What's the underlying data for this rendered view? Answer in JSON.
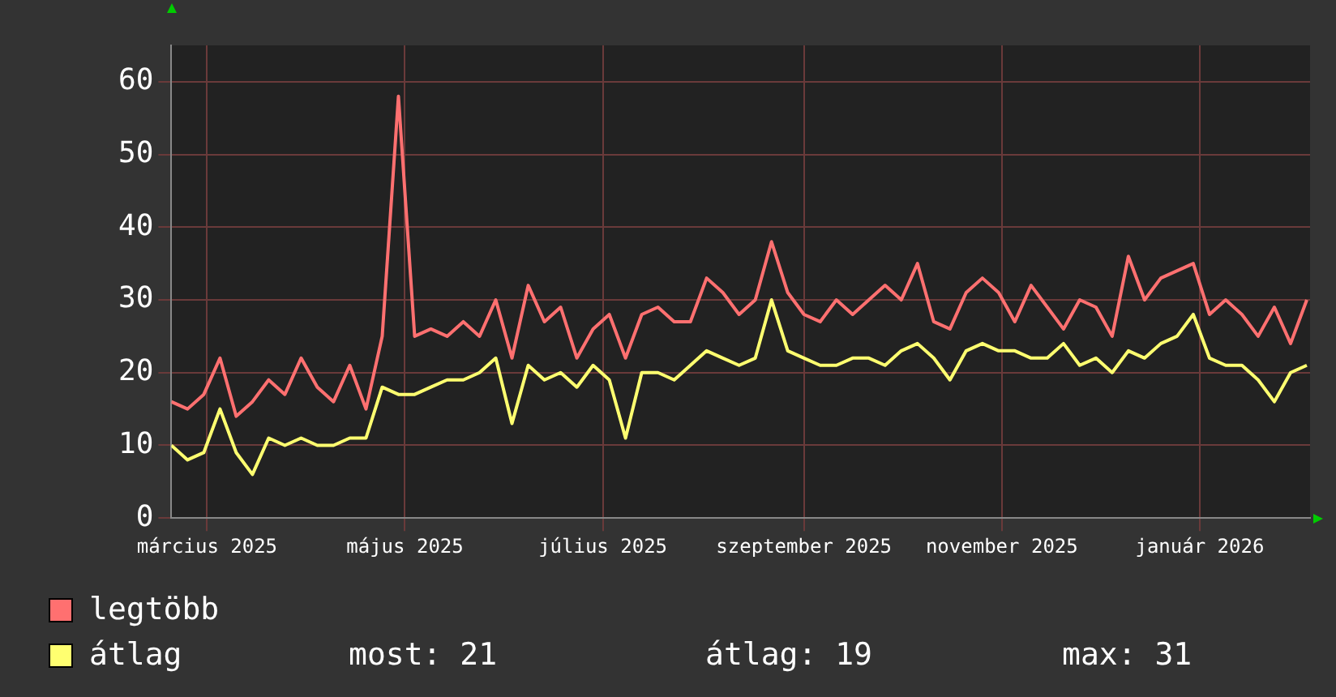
{
  "chart_data": {
    "type": "line",
    "x": [
      "2025-02-18",
      "2025-02-23",
      "2025-02-28",
      "2025-03-05",
      "2025-03-10",
      "2025-03-15",
      "2025-03-20",
      "2025-03-25",
      "2025-03-30",
      "2025-04-04",
      "2025-04-09",
      "2025-04-14",
      "2025-04-19",
      "2025-04-24",
      "2025-04-29",
      "2025-05-04",
      "2025-05-09",
      "2025-05-14",
      "2025-05-19",
      "2025-05-24",
      "2025-05-29",
      "2025-06-03",
      "2025-06-08",
      "2025-06-13",
      "2025-06-18",
      "2025-06-23",
      "2025-06-28",
      "2025-07-03",
      "2025-07-08",
      "2025-07-13",
      "2025-07-18",
      "2025-07-23",
      "2025-07-28",
      "2025-08-02",
      "2025-08-07",
      "2025-08-12",
      "2025-08-17",
      "2025-08-22",
      "2025-08-27",
      "2025-09-01",
      "2025-09-06",
      "2025-09-11",
      "2025-09-16",
      "2025-09-21",
      "2025-09-26",
      "2025-10-01",
      "2025-10-06",
      "2025-10-11",
      "2025-10-16",
      "2025-10-21",
      "2025-10-26",
      "2025-10-31",
      "2025-11-05",
      "2025-11-10",
      "2025-11-15",
      "2025-11-20",
      "2025-11-25",
      "2025-11-30",
      "2025-12-05",
      "2025-12-10",
      "2025-12-15",
      "2025-12-20",
      "2025-12-25",
      "2025-12-30",
      "2026-01-04",
      "2026-01-09",
      "2026-01-14",
      "2026-01-19",
      "2026-01-24",
      "2026-01-29",
      "2026-02-03"
    ],
    "series": [
      {
        "name": "legtöbb",
        "color": "#ff7070",
        "values": [
          16,
          15,
          17,
          22,
          14,
          16,
          19,
          17,
          22,
          18,
          16,
          21,
          15,
          25,
          58,
          25,
          26,
          25,
          27,
          25,
          30,
          22,
          32,
          27,
          29,
          22,
          26,
          28,
          22,
          28,
          29,
          27,
          27,
          33,
          31,
          28,
          30,
          38,
          31,
          28,
          27,
          30,
          28,
          30,
          32,
          30,
          35,
          27,
          26,
          31,
          33,
          31,
          27,
          32,
          29,
          26,
          30,
          29,
          25,
          36,
          30,
          33,
          34,
          35,
          28,
          30,
          28,
          25,
          29,
          24,
          30
        ]
      },
      {
        "name": "átlag",
        "color": "#ffff70",
        "values": [
          10,
          8,
          9,
          15,
          9,
          6,
          11,
          10,
          11,
          10,
          10,
          11,
          11,
          18,
          17,
          17,
          18,
          19,
          19,
          20,
          22,
          13,
          21,
          19,
          20,
          18,
          21,
          19,
          11,
          20,
          20,
          19,
          21,
          23,
          22,
          21,
          22,
          30,
          23,
          22,
          21,
          21,
          22,
          22,
          21,
          23,
          24,
          22,
          19,
          23,
          24,
          23,
          23,
          22,
          22,
          24,
          21,
          22,
          20,
          23,
          22,
          24,
          25,
          28,
          22,
          21,
          21,
          19,
          16,
          20,
          21
        ]
      }
    ],
    "xlim": [
      "2025-02-18",
      "2026-02-04"
    ],
    "xticks": [
      {
        "value": "2025-03-01",
        "label": "március 2025"
      },
      {
        "value": "2025-05-01",
        "label": "május 2025"
      },
      {
        "value": "2025-07-01",
        "label": "július 2025"
      },
      {
        "value": "2025-09-01",
        "label": "szeptember 2025"
      },
      {
        "value": "2025-11-01",
        "label": "november 2025"
      },
      {
        "value": "2026-01-01",
        "label": "január 2026"
      }
    ],
    "ylim": [
      0,
      65
    ],
    "yticks": [
      0,
      10,
      20,
      30,
      40,
      50,
      60
    ],
    "grid": true,
    "legend": "bottom",
    "marker": "none",
    "line_style": "solid",
    "annotations": [
      "most: 21",
      "átlag: 19",
      "max: 31"
    ]
  }
}
